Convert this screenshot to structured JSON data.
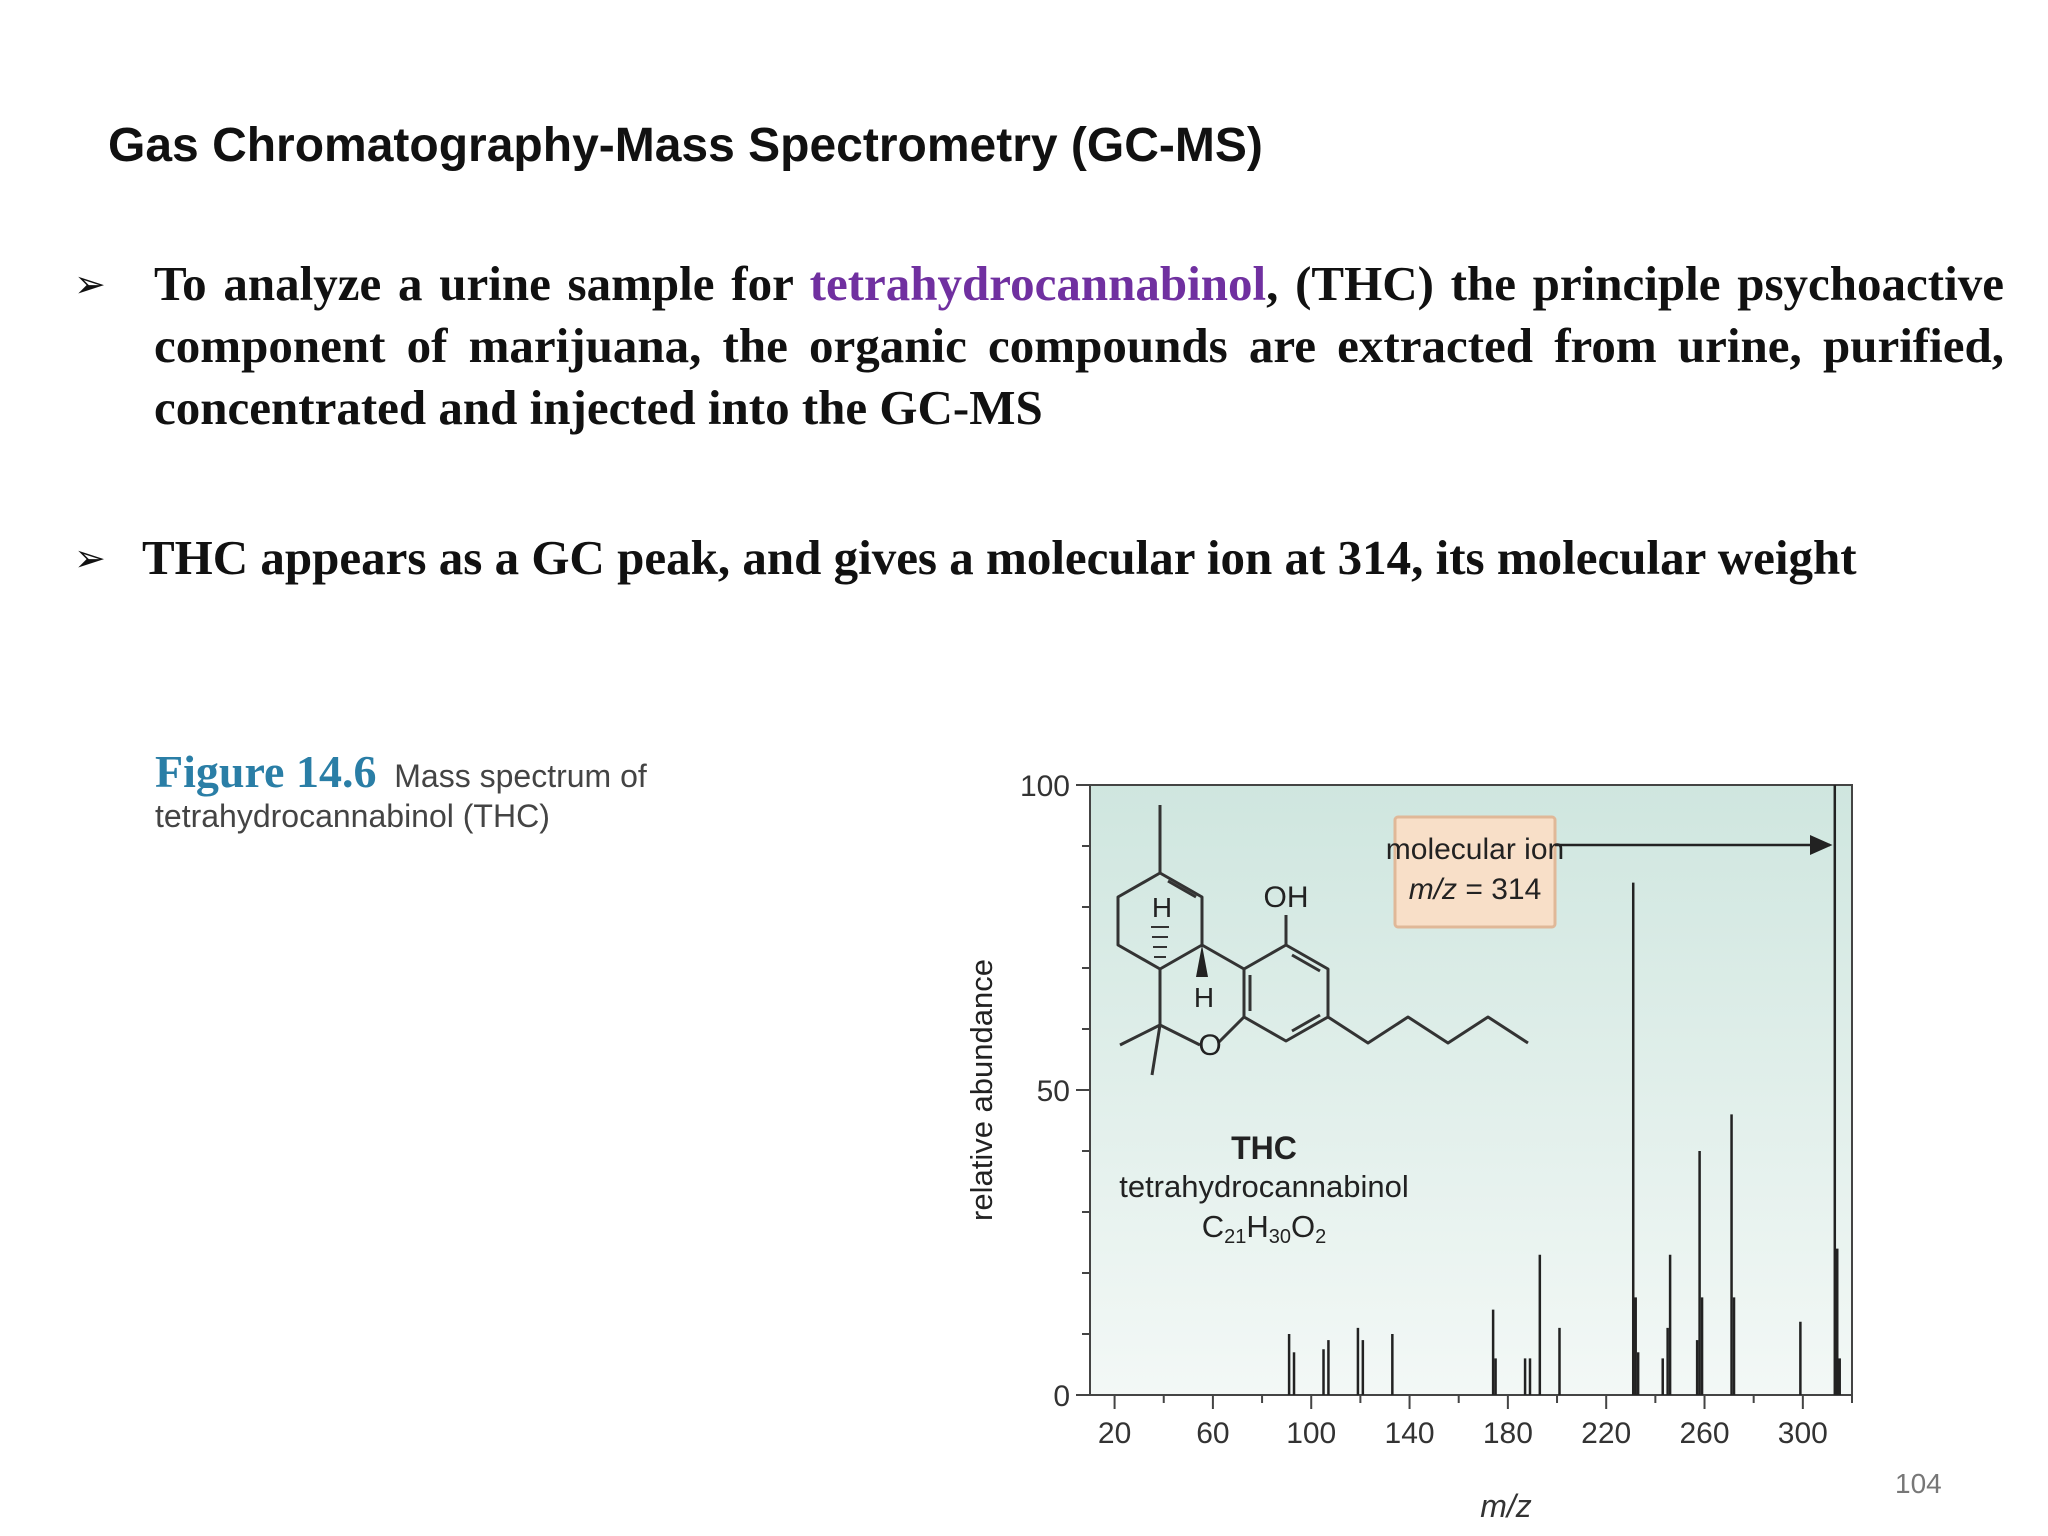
{
  "slide": {
    "title": "Gas Chromatography-Mass Spectrometry (GC-MS)",
    "bullets": [
      {
        "arrow": "➢",
        "pre": "To analyze a urine sample for ",
        "highlight": "tetrahydrocannabinol",
        "post": ", (THC) the principle psychoactive component of marijuana, the organic compounds are extracted from urine, purified, concentrated and injected into the GC-MS"
      },
      {
        "arrow": "➢",
        "text": "THC appears as a GC peak, and gives a molecular ion at 314, its molecular weight"
      }
    ],
    "figure": {
      "number": "Figure 14.6",
      "caption_line1": "Mass spectrum of",
      "caption_line2": "tetrahydrocannabinol (THC)"
    },
    "page_number": "104",
    "colors": {
      "highlight": "#7030a0",
      "figure_number": "#2a7ea6",
      "callout_fill": "#f8dfc8",
      "callout_border": "#e0b898"
    }
  },
  "chart_data": {
    "type": "bar",
    "xlabel": "m/z",
    "ylabel": "relative abundance",
    "xlim": [
      10,
      320
    ],
    "ylim": [
      0,
      100
    ],
    "xticks": [
      20,
      60,
      100,
      140,
      180,
      220,
      260,
      300
    ],
    "yticks": [
      0,
      50,
      100
    ],
    "grid": false,
    "peaks": [
      {
        "mz": 91,
        "abundance": 10
      },
      {
        "mz": 93,
        "abundance": 7
      },
      {
        "mz": 105,
        "abundance": 7.5
      },
      {
        "mz": 107,
        "abundance": 9
      },
      {
        "mz": 119,
        "abundance": 11
      },
      {
        "mz": 121,
        "abundance": 9
      },
      {
        "mz": 133,
        "abundance": 10
      },
      {
        "mz": 174,
        "abundance": 14
      },
      {
        "mz": 175,
        "abundance": 6
      },
      {
        "mz": 187,
        "abundance": 6
      },
      {
        "mz": 189,
        "abundance": 6
      },
      {
        "mz": 193,
        "abundance": 23
      },
      {
        "mz": 201,
        "abundance": 11
      },
      {
        "mz": 231,
        "abundance": 84
      },
      {
        "mz": 232,
        "abundance": 16
      },
      {
        "mz": 233,
        "abundance": 7
      },
      {
        "mz": 243,
        "abundance": 6
      },
      {
        "mz": 245,
        "abundance": 11
      },
      {
        "mz": 246,
        "abundance": 23
      },
      {
        "mz": 257,
        "abundance": 9
      },
      {
        "mz": 258,
        "abundance": 40
      },
      {
        "mz": 259,
        "abundance": 16
      },
      {
        "mz": 271,
        "abundance": 46
      },
      {
        "mz": 272,
        "abundance": 16
      },
      {
        "mz": 299,
        "abundance": 12
      },
      {
        "mz": 313,
        "abundance": 100
      },
      {
        "mz": 314,
        "abundance": 24
      },
      {
        "mz": 315,
        "abundance": 6
      }
    ],
    "annotations": {
      "callout_line1": "molecular ion",
      "callout_italic": "m/z",
      "callout_rest": " = 314",
      "molecule_name": "THC",
      "molecule_full": "tetrahydrocannabinol",
      "formula_c": "C",
      "formula_c_sub": "21",
      "formula_h": "H",
      "formula_h_sub": "30",
      "formula_o": "O",
      "formula_o_sub": "2",
      "oh_label": "OH",
      "o_label": "O",
      "h_label": "H"
    }
  }
}
